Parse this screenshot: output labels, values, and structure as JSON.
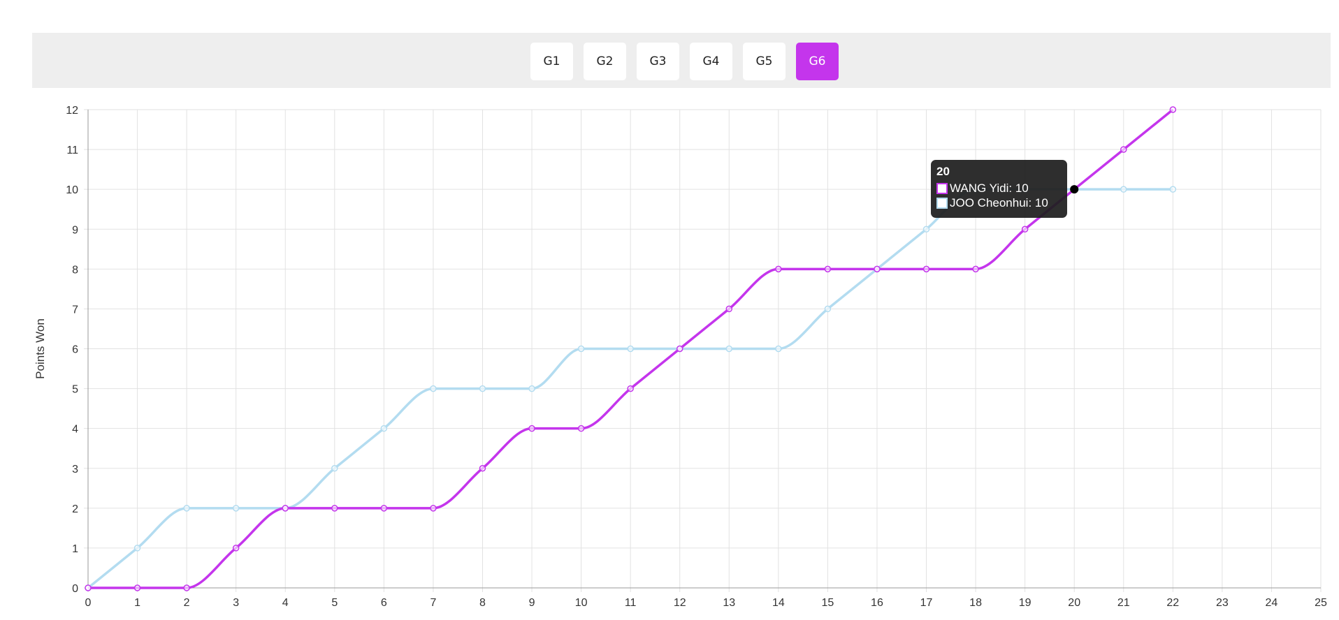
{
  "games": {
    "buttons": [
      {
        "label": "G1",
        "active": false
      },
      {
        "label": "G2",
        "active": false
      },
      {
        "label": "G3",
        "active": false
      },
      {
        "label": "G4",
        "active": false
      },
      {
        "label": "G5",
        "active": false
      },
      {
        "label": "G6",
        "active": true
      }
    ],
    "active_color": "#c435ec"
  },
  "chart_data": {
    "type": "line",
    "ylabel": "Points Won",
    "xlabel": "",
    "xlim": [
      0,
      25
    ],
    "ylim": [
      0,
      12
    ],
    "x_ticks": [
      0,
      1,
      2,
      3,
      4,
      5,
      6,
      7,
      8,
      9,
      10,
      11,
      12,
      13,
      14,
      15,
      16,
      17,
      18,
      19,
      20,
      21,
      22,
      23,
      24,
      25
    ],
    "y_ticks": [
      0,
      1,
      2,
      3,
      4,
      5,
      6,
      7,
      8,
      9,
      10,
      11,
      12
    ],
    "grid": true,
    "x": [
      0,
      1,
      2,
      3,
      4,
      5,
      6,
      7,
      8,
      9,
      10,
      11,
      12,
      13,
      14,
      15,
      16,
      17,
      18,
      19,
      20,
      21,
      22
    ],
    "series": [
      {
        "name": "WANG Yidi",
        "color": "#c435ec",
        "values": [
          0,
          0,
          0,
          1,
          2,
          2,
          2,
          2,
          3,
          4,
          4,
          5,
          6,
          7,
          8,
          8,
          8,
          8,
          8,
          9,
          10,
          11,
          12
        ]
      },
      {
        "name": "JOO Cheonhui",
        "color": "#b3dcf0",
        "values": [
          0,
          1,
          2,
          2,
          2,
          3,
          4,
          5,
          5,
          5,
          6,
          6,
          6,
          6,
          6,
          7,
          8,
          9,
          10,
          10,
          10,
          10,
          10
        ]
      }
    ],
    "tooltip": {
      "title": "20",
      "rows": [
        {
          "series": "WANG Yidi",
          "value": "10",
          "text": "WANG Yidi: 10"
        },
        {
          "series": "JOO Cheonhui",
          "value": "10",
          "text": "JOO Cheonhui: 10"
        }
      ]
    }
  }
}
